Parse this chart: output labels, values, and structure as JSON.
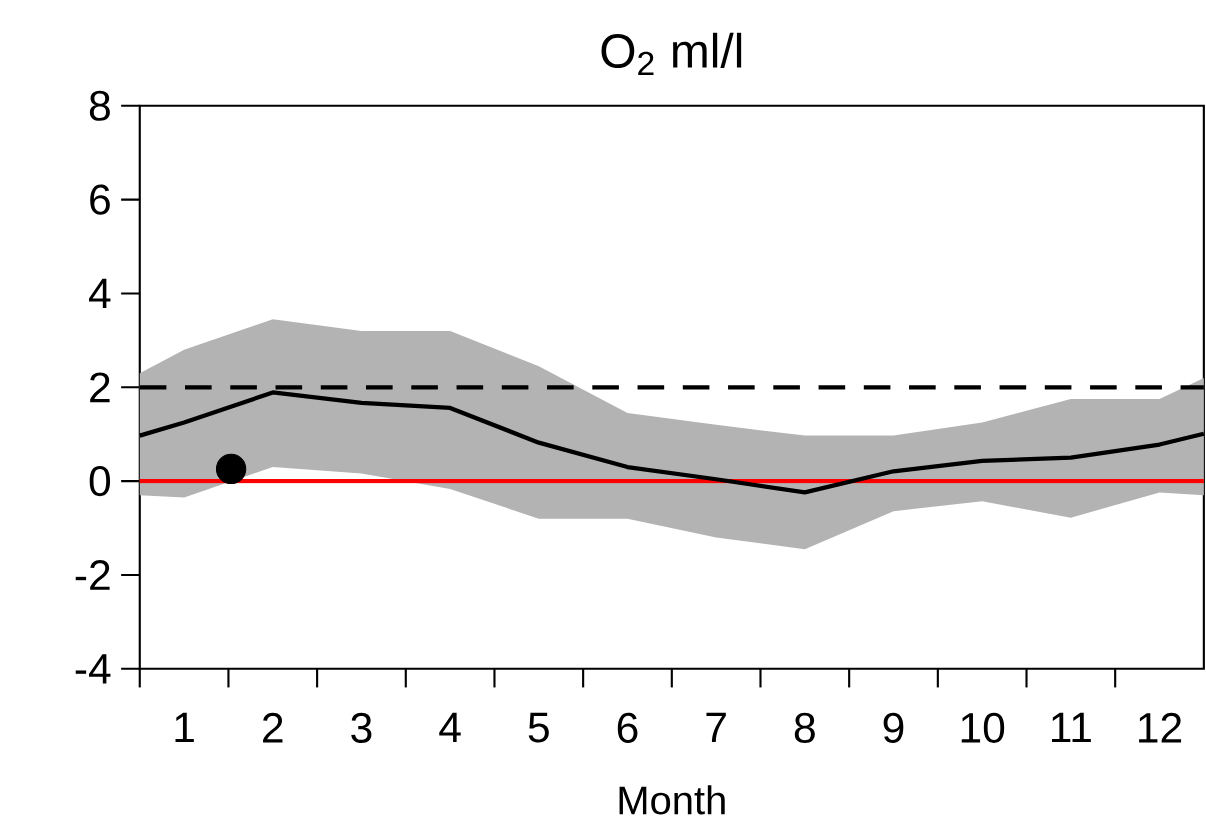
{
  "chart_data": {
    "type": "line",
    "title": "O$_{2}$ ml/l",
    "xlabel": "Month",
    "xlim": [
      0.5,
      12.5
    ],
    "ylim": [
      -4,
      8
    ],
    "xticks": [
      1,
      2,
      3,
      4,
      5,
      6,
      7,
      8,
      9,
      10,
      11,
      12,
      {
        "value": 0.5,
        "label": null
      },
      {
        "value": 1.5,
        "label": null
      },
      {
        "value": 2.5,
        "label": null
      },
      {
        "value": 3.5,
        "label": null
      },
      {
        "value": 4.5,
        "label": null
      },
      {
        "value": 5.5,
        "label": null
      },
      {
        "value": 6.5,
        "label": null
      },
      {
        "value": 7.5,
        "label": null
      },
      {
        "value": 8.5,
        "label": null
      },
      {
        "value": 9.5,
        "label": null
      },
      {
        "value": 10.5,
        "label": null
      },
      {
        "value": 11.5,
        "label": null
      }
    ],
    "yticks": [
      -4,
      -2,
      0,
      2,
      4,
      6,
      8
    ],
    "x": [
      0.5,
      1,
      2,
      3,
      4,
      5,
      6,
      7,
      8,
      9,
      10,
      11,
      12,
      12.5
    ],
    "series": [
      {
        "color": "#000000",
        "values": [
          0.97,
          1.25,
          1.89,
          1.67,
          1.56,
          0.82,
          0.3,
          0.04,
          -0.24,
          0.21,
          0.43,
          0.5,
          0.78,
          1.01
        ],
        "lower": [
          -0.3,
          -0.35,
          0.3,
          0.16,
          -0.17,
          -0.8,
          -0.8,
          -1.2,
          -1.45,
          -0.64,
          -0.43,
          -0.78,
          -0.24,
          -0.3
        ],
        "upper": [
          2.3,
          2.8,
          3.45,
          3.2,
          3.2,
          2.45,
          1.45,
          1.2,
          0.97,
          0.97,
          1.25,
          1.75,
          1.75,
          2.2
        ]
      },
      {
        "type": "scatter",
        "marker": "circle",
        "color": "#000000",
        "x": [
          1.53
        ],
        "values": [
          0.26
        ]
      }
    ],
    "ref_lines": [
      {
        "axis": "y",
        "value": 2,
        "color": "#000000",
        "line_style": "dashed"
      },
      {
        "axis": "y",
        "value": 0,
        "color": "#ff0000",
        "line_style": "solid"
      }
    ],
    "grid": false
  }
}
